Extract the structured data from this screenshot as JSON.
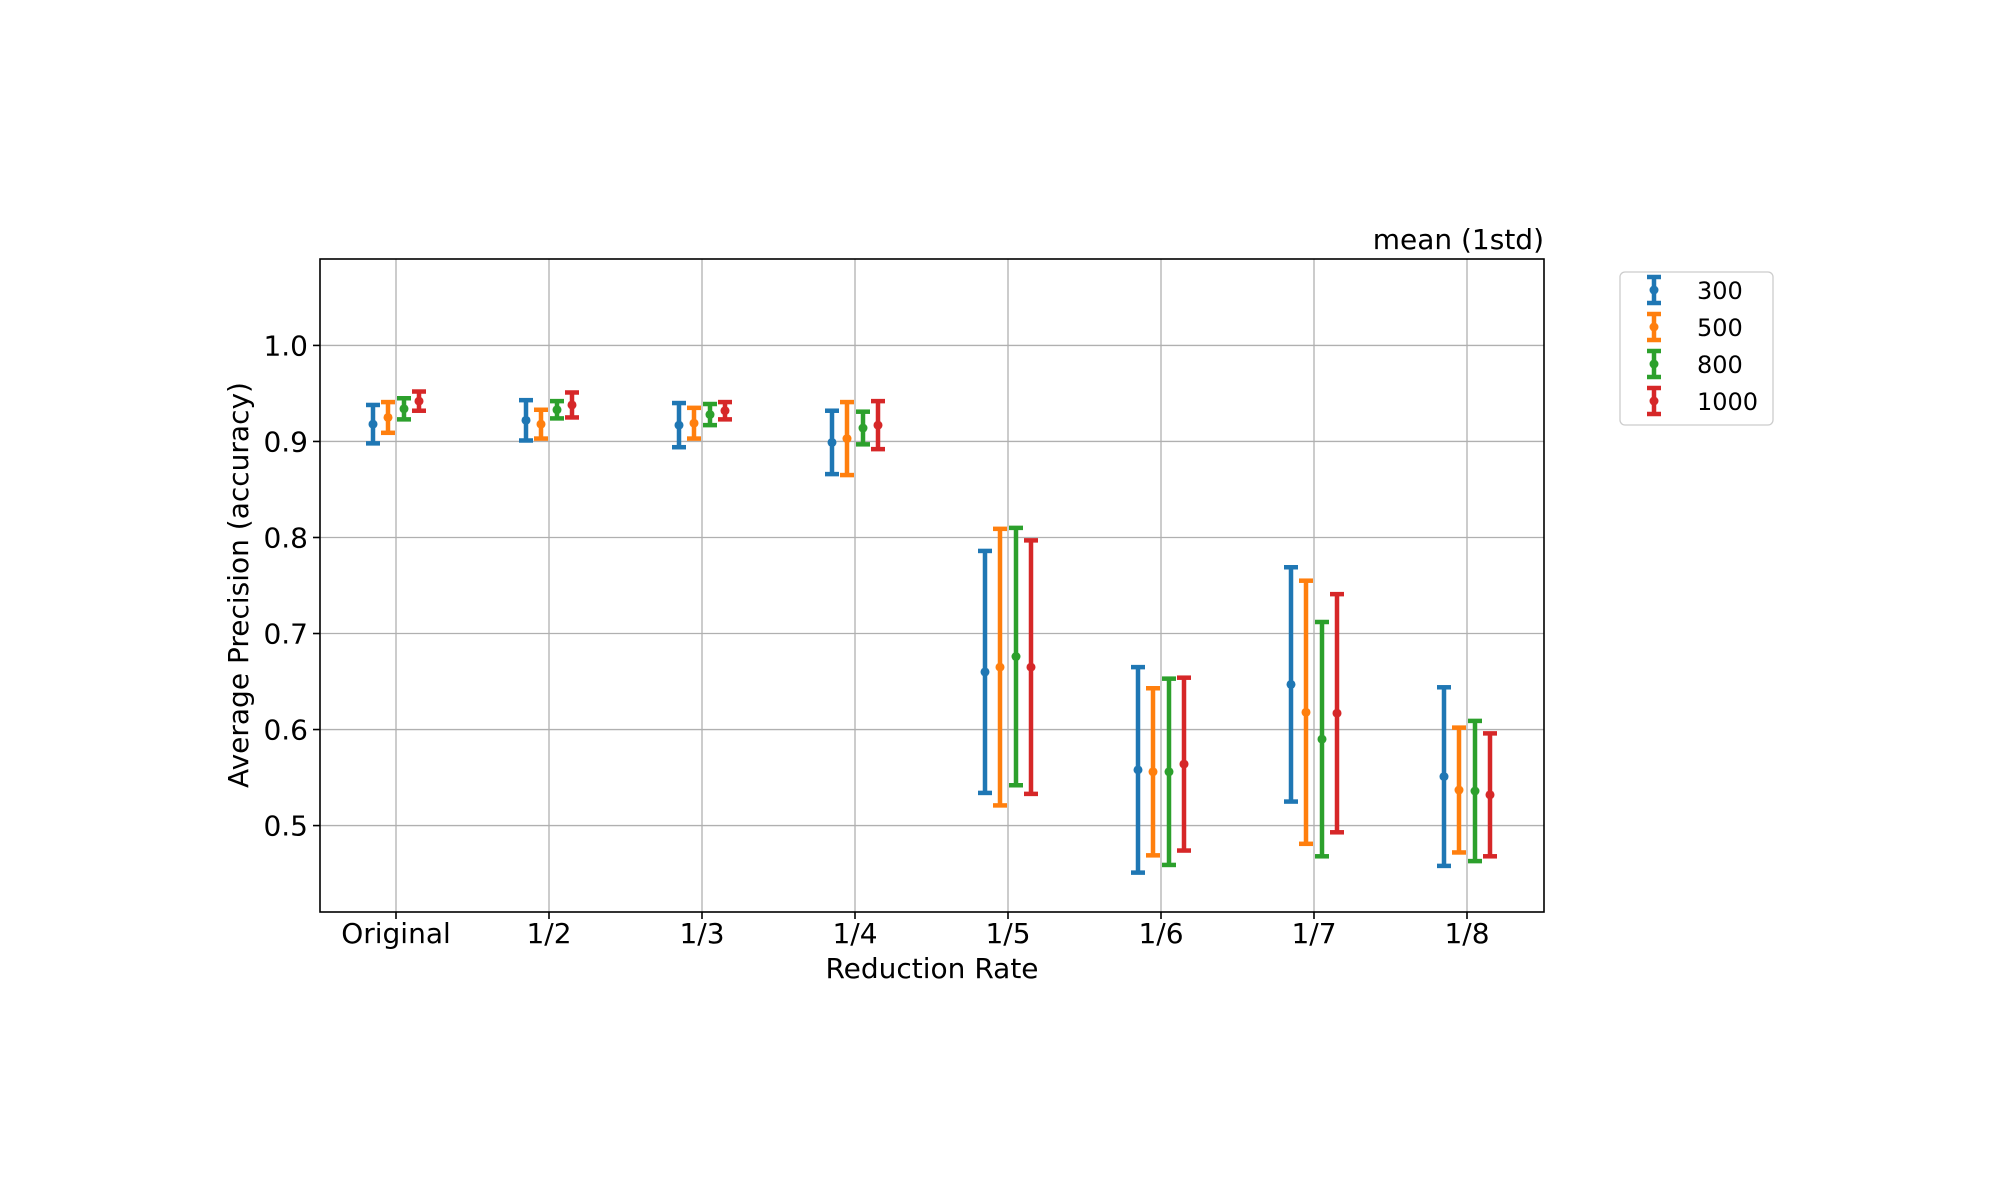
{
  "chart_data": {
    "type": "errorbar",
    "title": "mean (1std)",
    "xlabel": "Reduction Rate",
    "ylabel": "Average Precision (accuracy)",
    "categories": [
      "Original",
      "1/2",
      "1/3",
      "1/4",
      "1/5",
      "1/6",
      "1/7",
      "1/8"
    ],
    "yticks": [
      "0.5",
      "0.6",
      "0.7",
      "0.8",
      "0.9",
      "1.0"
    ],
    "ylim": [
      0.41,
      1.09
    ],
    "grid": true,
    "legend_position": "outside-right-top",
    "series": [
      {
        "name": "300",
        "color": "#1f77b4",
        "mean": [
          0.918,
          0.922,
          0.917,
          0.899,
          0.66,
          0.558,
          0.647,
          0.551
        ],
        "std": [
          0.02,
          0.021,
          0.023,
          0.033,
          0.126,
          0.107,
          0.122,
          0.093
        ]
      },
      {
        "name": "500",
        "color": "#ff7f0e",
        "mean": [
          0.925,
          0.918,
          0.919,
          0.903,
          0.665,
          0.556,
          0.618,
          0.537
        ],
        "std": [
          0.016,
          0.015,
          0.016,
          0.038,
          0.144,
          0.087,
          0.137,
          0.065
        ]
      },
      {
        "name": "800",
        "color": "#2ca02c",
        "mean": [
          0.934,
          0.933,
          0.928,
          0.914,
          0.676,
          0.556,
          0.59,
          0.536
        ],
        "std": [
          0.011,
          0.009,
          0.011,
          0.017,
          0.134,
          0.097,
          0.122,
          0.073
        ]
      },
      {
        "name": "1000",
        "color": "#d62728",
        "mean": [
          0.942,
          0.938,
          0.932,
          0.917,
          0.665,
          0.564,
          0.617,
          0.532
        ],
        "std": [
          0.01,
          0.013,
          0.009,
          0.025,
          0.132,
          0.09,
          0.124,
          0.064
        ]
      }
    ]
  }
}
